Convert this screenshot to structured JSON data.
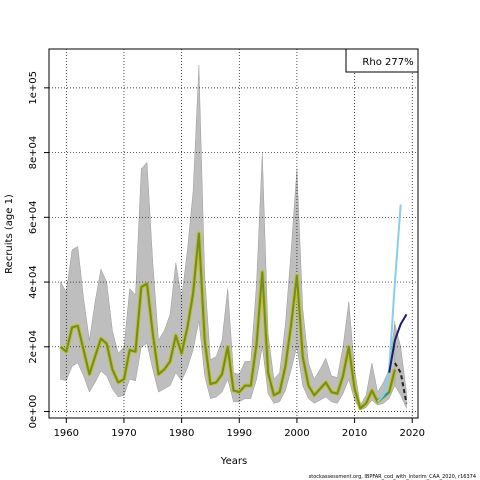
{
  "chart_data": {
    "type": "line",
    "title": "",
    "xlabel": "Years",
    "ylabel": "Recruits (age 1)",
    "xlim": [
      1957,
      2021
    ],
    "ylim": [
      -2000,
      112000
    ],
    "x_ticks": [
      1960,
      1970,
      1980,
      1990,
      2000,
      2010,
      2020
    ],
    "y_ticks": [
      0,
      20000,
      40000,
      60000,
      80000,
      100000
    ],
    "y_tick_labels": [
      "0e+00",
      "2e+04",
      "4e+04",
      "6e+04",
      "8e+04",
      "1e+05"
    ],
    "grid": true,
    "legend_text": "Rho 277%",
    "legend_position": "top-right",
    "caption": "stockassessment.org, IBPFAR_cod_with_interim_CAA_2020, r16374",
    "years": [
      1959,
      1960,
      1961,
      1962,
      1963,
      1964,
      1965,
      1966,
      1967,
      1968,
      1969,
      1970,
      1971,
      1972,
      1973,
      1974,
      1975,
      1976,
      1977,
      1978,
      1979,
      1980,
      1981,
      1982,
      1983,
      1984,
      1985,
      1986,
      1987,
      1988,
      1989,
      1990,
      1991,
      1992,
      1993,
      1994,
      1995,
      1996,
      1997,
      1998,
      1999,
      2000,
      2001,
      2002,
      2003,
      2004,
      2005,
      2006,
      2007,
      2008,
      2009,
      2010,
      2011,
      2012,
      2013,
      2014,
      2015,
      2016,
      2017,
      2018,
      2019
    ],
    "series": [
      {
        "name": "",
        "color": "#6f8f24",
        "values": [
          20000,
          18500,
          26000,
          26500,
          19000,
          11500,
          17000,
          22500,
          21000,
          13000,
          9000,
          10000,
          19000,
          18500,
          38500,
          39500,
          24000,
          11500,
          13000,
          15500,
          23500,
          18000,
          26000,
          36500,
          55000,
          22000,
          8500,
          9000,
          11500,
          20000,
          6500,
          6000,
          8000,
          8000,
          21000,
          43000,
          12000,
          5000,
          6000,
          14000,
          27000,
          42000,
          17000,
          8000,
          5000,
          7000,
          9000,
          6000,
          5500,
          11000,
          20000,
          7000,
          1000,
          2500,
          6500,
          3000,
          4500,
          6000,
          13000,
          null,
          null
        ],
        "band_lower": [
          10000,
          9500,
          14000,
          15000,
          11000,
          6000,
          9000,
          12500,
          11000,
          7000,
          4500,
          5000,
          10000,
          9500,
          20000,
          21000,
          13000,
          6000,
          7000,
          8000,
          12000,
          9500,
          13500,
          19000,
          28000,
          11000,
          4000,
          4500,
          6000,
          10000,
          3000,
          3000,
          4000,
          4000,
          10000,
          20000,
          5500,
          2500,
          3000,
          6500,
          13000,
          20000,
          8000,
          4000,
          2500,
          3500,
          4500,
          3000,
          2500,
          5500,
          10000,
          3500,
          500,
          1200,
          3500,
          2000,
          2500,
          4000,
          8000,
          null,
          null
        ],
        "band_upper": [
          40000,
          37000,
          50000,
          51000,
          35000,
          22000,
          34000,
          44000,
          40000,
          25000,
          18000,
          20000,
          38000,
          36000,
          75000,
          77000,
          46000,
          22000,
          25000,
          30000,
          46000,
          35000,
          50000,
          68000,
          107000,
          42000,
          16000,
          17000,
          22000,
          38000,
          12000,
          11500,
          15500,
          15500,
          40000,
          80000,
          24000,
          10000,
          12000,
          27000,
          50000,
          75000,
          32000,
          15000,
          10000,
          13000,
          16500,
          11000,
          10500,
          20000,
          34000,
          13000,
          2000,
          5000,
          15000,
          6000,
          9000,
          13000,
          28000,
          null,
          null
        ]
      },
      {
        "name": "",
        "color": "#1f8fb8",
        "values": [
          null,
          null,
          null,
          null,
          null,
          null,
          null,
          null,
          null,
          null,
          null,
          null,
          null,
          null,
          null,
          null,
          null,
          null,
          null,
          null,
          null,
          null,
          null,
          null,
          null,
          null,
          null,
          null,
          null,
          null,
          null,
          null,
          null,
          null,
          null,
          null,
          null,
          null,
          null,
          null,
          null,
          null,
          null,
          null,
          null,
          null,
          null,
          null,
          null,
          null,
          null,
          null,
          null,
          null,
          null,
          3500,
          4500,
          6000,
          null,
          null,
          null
        ]
      },
      {
        "name": "",
        "color": "#87ceeb",
        "values": [
          null,
          null,
          null,
          null,
          null,
          null,
          null,
          null,
          null,
          null,
          null,
          null,
          null,
          null,
          null,
          null,
          null,
          null,
          null,
          null,
          null,
          null,
          null,
          null,
          null,
          null,
          null,
          null,
          null,
          null,
          null,
          null,
          null,
          null,
          null,
          null,
          null,
          null,
          null,
          null,
          null,
          null,
          null,
          null,
          null,
          null,
          null,
          null,
          null,
          null,
          null,
          null,
          null,
          null,
          null,
          3000,
          5000,
          13000,
          40000,
          64000,
          null
        ]
      },
      {
        "name": "",
        "color": "#1c1c6e",
        "values": [
          null,
          null,
          null,
          null,
          null,
          null,
          null,
          null,
          null,
          null,
          null,
          null,
          null,
          null,
          null,
          null,
          null,
          null,
          null,
          null,
          null,
          null,
          null,
          null,
          null,
          null,
          null,
          null,
          null,
          null,
          null,
          null,
          null,
          null,
          null,
          null,
          null,
          null,
          null,
          null,
          null,
          null,
          null,
          null,
          null,
          null,
          null,
          null,
          null,
          null,
          null,
          null,
          null,
          null,
          null,
          null,
          null,
          12000,
          22000,
          27000,
          30000
        ]
      },
      {
        "name": "",
        "color": "#222222",
        "dashed": true,
        "values": [
          null,
          null,
          null,
          null,
          null,
          null,
          null,
          null,
          null,
          null,
          null,
          null,
          null,
          null,
          null,
          null,
          null,
          null,
          null,
          null,
          null,
          null,
          null,
          null,
          null,
          null,
          null,
          null,
          null,
          null,
          null,
          null,
          null,
          null,
          null,
          null,
          null,
          null,
          null,
          null,
          null,
          null,
          null,
          null,
          null,
          null,
          null,
          null,
          null,
          null,
          null,
          null,
          null,
          null,
          null,
          null,
          null,
          null,
          15000,
          12000,
          2500
        ],
        "band_lower": [
          null,
          null,
          null,
          null,
          null,
          null,
          null,
          null,
          null,
          null,
          null,
          null,
          null,
          null,
          null,
          null,
          null,
          null,
          null,
          null,
          null,
          null,
          null,
          null,
          null,
          null,
          null,
          null,
          null,
          null,
          null,
          null,
          null,
          null,
          null,
          null,
          null,
          null,
          null,
          null,
          null,
          null,
          null,
          null,
          null,
          null,
          null,
          null,
          null,
          null,
          null,
          null,
          null,
          null,
          null,
          null,
          null,
          null,
          8000,
          5000,
          1000
        ],
        "band_upper": [
          null,
          null,
          null,
          null,
          null,
          null,
          null,
          null,
          null,
          null,
          null,
          null,
          null,
          null,
          null,
          null,
          null,
          null,
          null,
          null,
          null,
          null,
          null,
          null,
          null,
          null,
          null,
          null,
          null,
          null,
          null,
          null,
          null,
          null,
          null,
          null,
          null,
          null,
          null,
          null,
          null,
          null,
          null,
          null,
          null,
          null,
          null,
          null,
          null,
          null,
          null,
          null,
          null,
          null,
          null,
          null,
          null,
          null,
          27000,
          20000,
          6000
        ]
      }
    ]
  }
}
